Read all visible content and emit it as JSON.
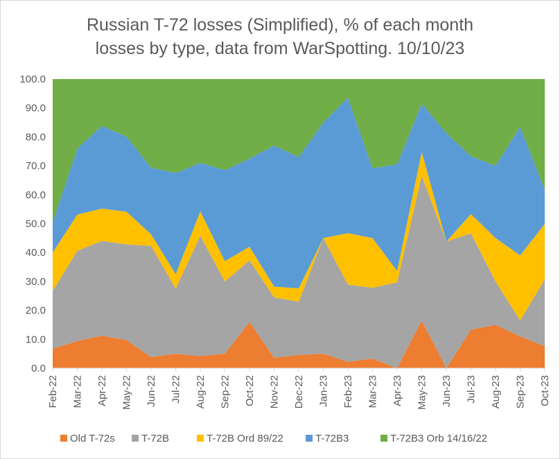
{
  "chart_data": {
    "type": "area",
    "stacked": true,
    "title_lines": [
      "Russian T-72 losses (Simplified), % of each month",
      "losses by type, data from WarSpotting. 10/10/23"
    ],
    "xlabel": "",
    "ylabel": "",
    "ylim": [
      0,
      100
    ],
    "y_ticks": [
      0,
      10,
      20,
      30,
      40,
      50,
      60,
      70,
      80,
      90,
      100
    ],
    "y_tick_labels": [
      "0.0",
      "10.0",
      "20.0",
      "30.0",
      "40.0",
      "50.0",
      "60.0",
      "70.0",
      "80.0",
      "90.0",
      "100.0"
    ],
    "grid": false,
    "legend_position": "bottom",
    "categories": [
      "Feb-22",
      "Mar-22",
      "Apr-22",
      "May-22",
      "Jun-22",
      "Jul-22",
      "Aug-22",
      "Sep-22",
      "Oct-22",
      "Nov-22",
      "Dec-22",
      "Jan-23",
      "Feb-23",
      "Mar-23",
      "Apr-23",
      "May-23",
      "Jun-23",
      "Jul-23",
      "Aug-23",
      "Sep-23",
      "Oct-23"
    ],
    "series": [
      {
        "name": "Old T-72s",
        "color": "#ED7D31",
        "values": [
          6.7,
          9.4,
          11.2,
          9.7,
          3.8,
          5.0,
          4.2,
          5.0,
          16.0,
          3.6,
          4.6,
          5.0,
          2.2,
          3.3,
          0.0,
          16.5,
          0.0,
          13.3,
          15.0,
          11.0,
          7.6
        ]
      },
      {
        "name": "T-72B",
        "color": "#A5A5A5",
        "values": [
          20.0,
          31.2,
          32.8,
          33.1,
          38.5,
          22.5,
          41.6,
          25.0,
          21.3,
          20.9,
          18.4,
          40.0,
          26.7,
          24.5,
          29.7,
          50.0,
          43.8,
          33.3,
          15.0,
          5.5,
          23.1
        ]
      },
      {
        "name": "T-72B Ord 89/22",
        "color": "#FFC000",
        "values": [
          13.3,
          12.5,
          11.2,
          11.3,
          4.0,
          5.0,
          8.4,
          7.0,
          4.7,
          3.7,
          4.6,
          0.0,
          17.8,
          17.2,
          3.9,
          8.3,
          0.0,
          6.7,
          15.0,
          22.5,
          19.2
        ]
      },
      {
        "name": "T-72B3",
        "color": "#5B9BD5",
        "values": [
          10.3,
          22.9,
          28.6,
          26.0,
          23.0,
          35.0,
          16.8,
          31.5,
          30.5,
          48.8,
          45.4,
          40.0,
          46.9,
          24.1,
          36.9,
          16.7,
          37.5,
          20.0,
          25.0,
          44.5,
          11.8
        ]
      },
      {
        "name": "T-72B3 Orb 14/16/22",
        "color": "#70AD47",
        "values": [
          49.7,
          24.0,
          16.2,
          19.9,
          30.7,
          32.5,
          29.0,
          31.5,
          27.5,
          23.0,
          27.0,
          15.0,
          6.4,
          30.9,
          29.5,
          8.5,
          18.7,
          26.7,
          30.0,
          16.5,
          38.3
        ]
      }
    ]
  }
}
